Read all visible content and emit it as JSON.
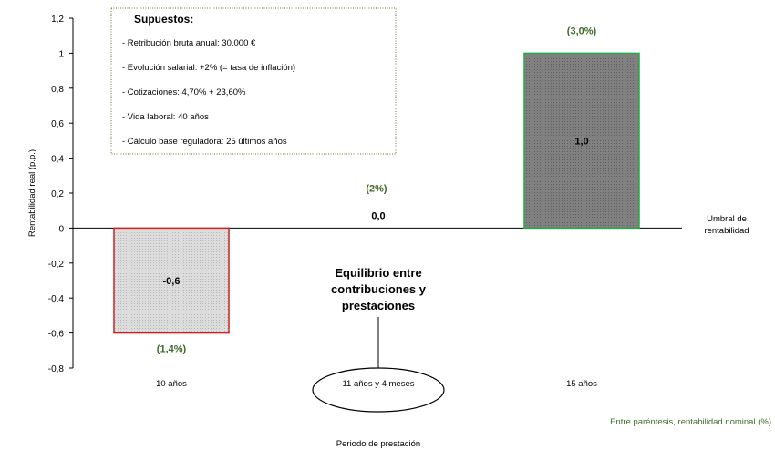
{
  "chart_data": {
    "type": "bar",
    "ylabel": "Rentabilidad real (p.p.)",
    "xlabel": "Periodo de prestación",
    "ylim": [
      -0.8,
      1.2
    ],
    "yticks": [
      "1,2",
      "1",
      "0,8",
      "0,6",
      "0,4",
      "0,2",
      "0",
      "-0,2",
      "-0,4",
      "-0,6",
      "-0,8"
    ],
    "categories": [
      "10 años",
      "11 años y 4 meses",
      "15 años"
    ],
    "values": [
      -0.6,
      0.0,
      1.0
    ],
    "value_labels": [
      "-0,6",
      "0,0",
      "1,0"
    ],
    "nominal_labels": [
      "(1,4%)",
      "(2%)",
      "(3,0%)"
    ],
    "bar_colors": {
      "fill_negative": "#d9d9d9",
      "border_negative": "#cc2222",
      "fill_positive": "#7f7f7f",
      "border_positive": "#22aa44"
    },
    "umbral_label": [
      "Umbral de",
      "rentabilidad"
    ],
    "equilibrio_label": [
      "Equilibrio entre",
      "contribuciones y",
      "prestaciones"
    ],
    "note": "Entre paréntesis, rentabilidad nominal (%)",
    "supuestos": {
      "title": "Supuestos:",
      "items": [
        "- Retribución bruta anual: 30.000 €",
        "- Evolución salarial: +2% (= tasa de inflación)",
        "- Cotizaciones: 4,70% + 23,60%",
        "- Vida laboral: 40 años",
        "- Cálculo base reguladora: 25 últimos años"
      ]
    }
  }
}
